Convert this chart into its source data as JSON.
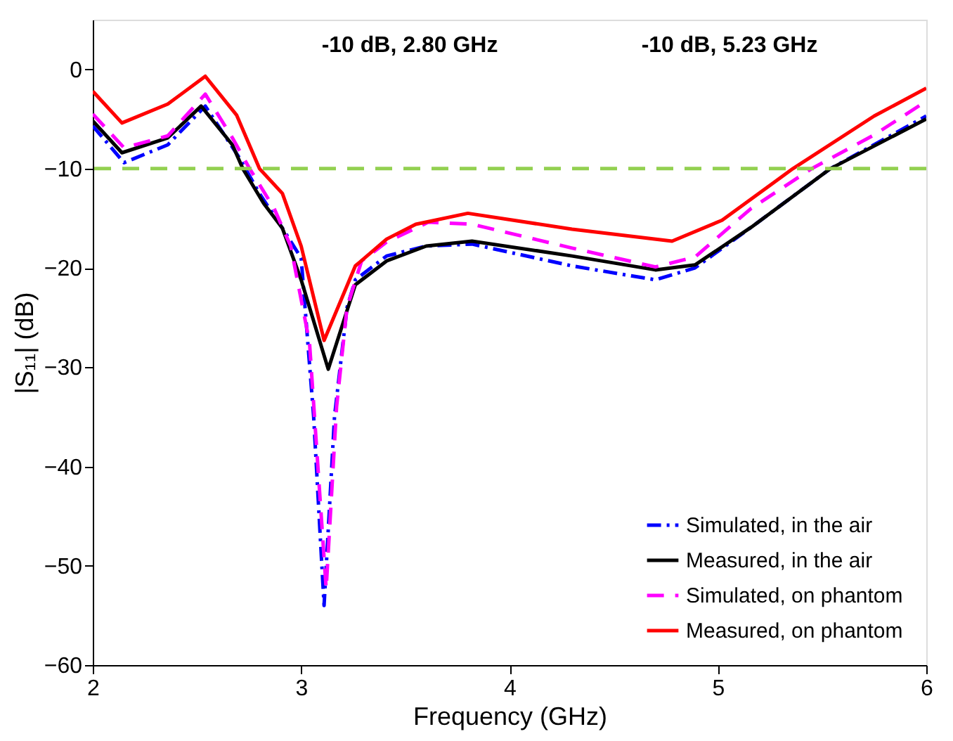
{
  "chart_data": {
    "type": "line",
    "xlabel": "Frequency (GHz)",
    "ylabel": "|S₁₁| (dB)",
    "xlim": [
      2,
      6
    ],
    "xticks": [
      2,
      3,
      4,
      5,
      6
    ],
    "ylim": [
      -60,
      5
    ],
    "yticks": [
      -60,
      -50,
      -40,
      -30,
      -20,
      -10,
      0
    ],
    "grid": false,
    "legend": "bottom right",
    "marker": "none",
    "annotations": [
      "-10 dB, 2.80 GHz",
      "-10 dB, 5.23 GHz"
    ],
    "ref_lines": [
      {
        "axis": "y",
        "value": -10,
        "color": "#92d050",
        "line_style": "dashed"
      }
    ],
    "series": [
      {
        "name": "Simulated, in the air",
        "color": "#0000ff",
        "line_style": "dashdot",
        "x": [
          2.0,
          2.15,
          2.36,
          2.54,
          2.7,
          2.8,
          2.91,
          3.0,
          3.06,
          3.11,
          3.16,
          3.22,
          3.26,
          3.41,
          3.6,
          3.82,
          4.3,
          4.7,
          4.89,
          5.16,
          5.54,
          6.0
        ],
        "values": [
          -5.7,
          -9.4,
          -7.6,
          -3.7,
          -8.8,
          -12.5,
          -16,
          -19,
          -35,
          -54,
          -35,
          -24,
          -21.2,
          -18.8,
          -17.8,
          -17.6,
          -19.8,
          -21.2,
          -20,
          -15.9,
          -10,
          -4.7
        ]
      },
      {
        "name": "Measured, in the air",
        "color": "#000000",
        "line_style": "solid",
        "x": [
          2.0,
          2.14,
          2.36,
          2.52,
          2.67,
          2.72,
          2.82,
          2.91,
          3.0,
          3.13,
          3.26,
          3.41,
          3.6,
          3.82,
          4.3,
          4.7,
          4.89,
          5.16,
          5.54,
          6.0
        ],
        "values": [
          -5.2,
          -8.4,
          -6.9,
          -3.7,
          -7.6,
          -10,
          -13.5,
          -16,
          -21.2,
          -30.2,
          -21.7,
          -19.3,
          -17.8,
          -17.3,
          -18.8,
          -20.2,
          -19.7,
          -15.9,
          -10,
          -5.0
        ]
      },
      {
        "name": "Simulated, on phantom",
        "color": "#ff00ff",
        "line_style": "dashed",
        "x": [
          2.0,
          2.15,
          2.36,
          2.54,
          2.67,
          2.75,
          2.87,
          2.95,
          3.04,
          3.12,
          3.17,
          3.22,
          3.29,
          3.41,
          3.61,
          3.82,
          4.3,
          4.7,
          4.89,
          5.16,
          5.45,
          5.75,
          6.0
        ],
        "values": [
          -4.5,
          -7.9,
          -6.7,
          -2.5,
          -6.9,
          -9.9,
          -14,
          -17.8,
          -27.5,
          -52.3,
          -34,
          -24,
          -19.3,
          -17.4,
          -15.4,
          -15.6,
          -18,
          -19.9,
          -18.9,
          -14,
          -10,
          -6.6,
          -3.2
        ]
      },
      {
        "name": "Measured, on phantom",
        "color": "#ff0000",
        "line_style": "solid",
        "x": [
          2.0,
          2.14,
          2.36,
          2.54,
          2.69,
          2.8,
          2.91,
          3.0,
          3.11,
          3.26,
          3.41,
          3.55,
          3.8,
          4.3,
          4.78,
          5.02,
          5.36,
          5.75,
          6.0
        ],
        "values": [
          -2.2,
          -5.4,
          -3.5,
          -0.7,
          -4.6,
          -10,
          -12.5,
          -17.8,
          -27.3,
          -19.8,
          -17.1,
          -15.6,
          -14.5,
          -16.1,
          -17.3,
          -15.2,
          -10,
          -4.7,
          -1.9
        ]
      }
    ]
  }
}
